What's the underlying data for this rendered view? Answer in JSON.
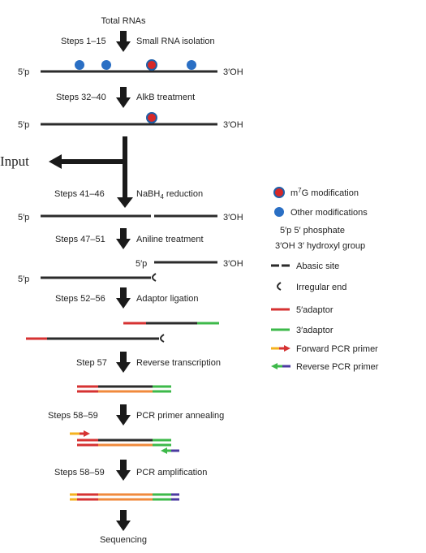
{
  "colors": {
    "strand": "#2b2b2b",
    "m7g_fill": "#d62828",
    "m7g_ring": "#1f5fa8",
    "other_mod": "#2a6fc4",
    "adaptor5": "#d63232",
    "adaptor3": "#3db94a",
    "reverse_transcript": "#f08a3c",
    "forward_primer_tail": "#f5b21f",
    "reverse_primer_tail": "#4b3aa0",
    "arrow": "#1a1a1a"
  },
  "header": {
    "title": "Total RNAs",
    "footer": "Sequencing"
  },
  "input_label": "Input",
  "end_labels": {
    "five_p": "5′p",
    "three_oh": "3′OH"
  },
  "steps": [
    {
      "steps": "Steps 1–15",
      "label": "Small RNA isolation"
    },
    {
      "steps": "Steps 32–40",
      "label": "AlkB treatment"
    },
    {
      "steps": "Steps 41–46",
      "label": "NaBH",
      "label_sub": "4",
      "label_tail": " reduction"
    },
    {
      "steps": "Steps 47–51",
      "label": "Aniline treatment"
    },
    {
      "steps": "Steps 52–56",
      "label": "Adaptor ligation"
    },
    {
      "steps": "Step 57",
      "label": "Reverse transcription"
    },
    {
      "steps": "Steps 58–59",
      "label": "PCR primer annealing"
    },
    {
      "steps": "Steps 58–59",
      "label": "PCR amplification"
    }
  ],
  "legend": {
    "m7g": {
      "pre": "m",
      "sup": "7",
      "post": "G modification"
    },
    "other": "Other modifications",
    "five_p_text": "5′p 5′ phosphate",
    "three_oh_text": "3′OH 3′ hydroxyl group",
    "abasic": "Abasic site",
    "irregular": "Irregular end",
    "adaptor5": "5′adaptor",
    "adaptor3": "3′adaptor",
    "forward_primer": "Forward PCR primer",
    "reverse_primer": "Reverse PCR primer"
  }
}
